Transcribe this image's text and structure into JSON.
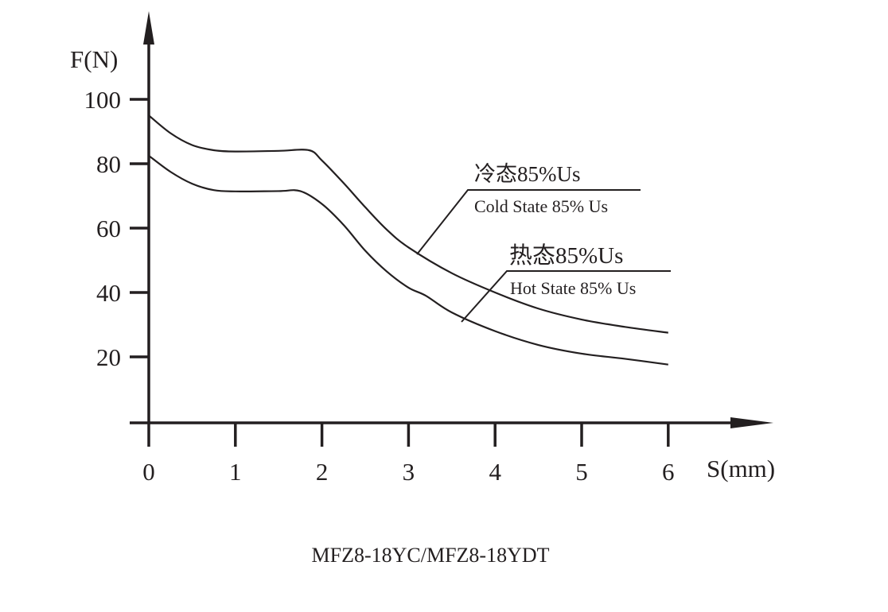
{
  "chart_data": {
    "type": "line",
    "title": "",
    "caption": "MFZ8-18YC/MFZ8-18YDT",
    "xlabel": "S(mm)",
    "ylabel": "F(N)",
    "xlim": [
      0,
      6
    ],
    "ylim": [
      0,
      100
    ],
    "xticks": [
      "0",
      "1",
      "2",
      "3",
      "4",
      "5",
      "6"
    ],
    "yticks": [
      "20",
      "40",
      "60",
      "80",
      "100"
    ],
    "grid": false,
    "series": [
      {
        "name": "冷态85%Us",
        "name_en": "Cold State 85% Us",
        "x": [
          0,
          0.25,
          0.5,
          0.75,
          1,
          1.5,
          1.85,
          2,
          2.25,
          2.5,
          2.75,
          3,
          3.5,
          4,
          4.5,
          5,
          5.5,
          6
        ],
        "y": [
          95,
          89.5,
          85.8,
          84.2,
          83.8,
          84,
          84.2,
          81,
          74,
          66.5,
          59.5,
          54,
          46,
          40,
          35,
          31.6,
          29.3,
          27.5
        ]
      },
      {
        "name": "热态85%Us",
        "name_en": "Hot State 85% Us",
        "x": [
          0,
          0.25,
          0.5,
          0.75,
          1,
          1.5,
          1.75,
          2,
          2.25,
          2.5,
          2.75,
          3,
          3.2,
          3.5,
          4,
          4.5,
          5,
          5.5,
          6
        ],
        "y": [
          82.5,
          77.5,
          73.8,
          71.8,
          71.4,
          71.5,
          71.5,
          67.5,
          61,
          53,
          46.5,
          41.5,
          39,
          33.8,
          28,
          23.7,
          21,
          19.4,
          17.6
        ]
      }
    ]
  }
}
